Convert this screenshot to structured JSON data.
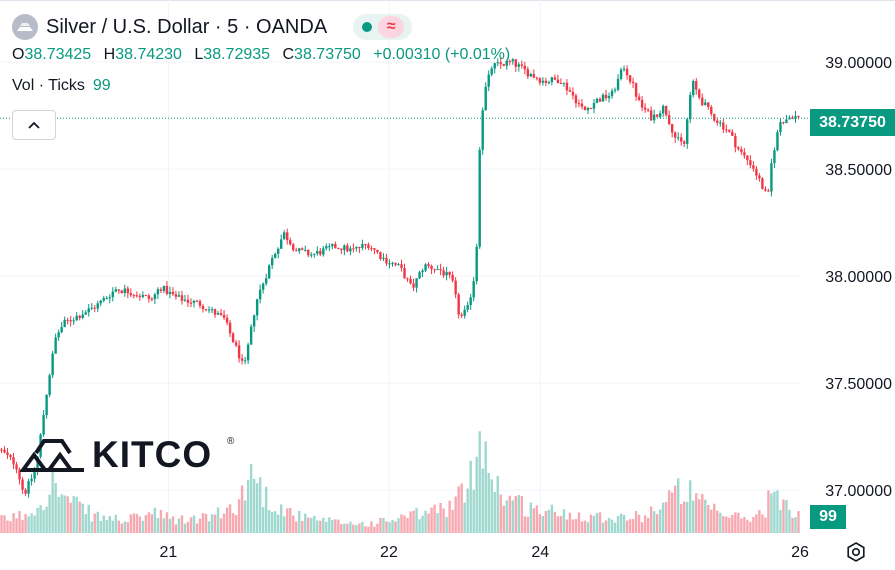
{
  "header": {
    "title": "Silver / U.S. Dollar · 5 · OANDA",
    "ohlc": {
      "o_label": "O",
      "o": "38.73425",
      "h_label": "H",
      "h": "38.74230",
      "l_label": "L",
      "l": "38.72935",
      "c_label": "C",
      "c": "38.73750",
      "change": "+0.00310 (+0.01%)"
    },
    "volume_label": "Vol · Ticks",
    "volume_value": "99"
  },
  "logo": {
    "text": "KITCO",
    "reg": "®"
  },
  "price_tag": "38.73750",
  "volume_tag": "99",
  "icons": {
    "symbol": "silver-bars-icon",
    "status": "market-open-dot-icon",
    "wave": "approx-wave-icon",
    "collapse": "chevron-up-icon",
    "settings": "gear-icon"
  },
  "colors": {
    "up": "#089981",
    "down": "#f23645",
    "grid": "#f0f3fa",
    "text": "#131722"
  },
  "chart_data": {
    "type": "candlestick",
    "symbol": "Silver / U.S. Dollar",
    "interval": "5",
    "source": "OANDA",
    "ylim": [
      36.8,
      39.22
    ],
    "y_ticks": [
      "39.00000",
      "38.50000",
      "38.00000",
      "37.50000",
      "37.00000"
    ],
    "y_tick_values": [
      39.0,
      38.5,
      38.0,
      37.5,
      37.0
    ],
    "x_ticks": [
      {
        "label": "21",
        "at": 0.2105
      },
      {
        "label": "22",
        "at": 0.4862
      },
      {
        "label": "24",
        "at": 0.6754
      },
      {
        "label": "26",
        "at": 1.0
      }
    ],
    "last_price": 38.7375,
    "last_volume": 99,
    "price_path": [
      [
        0.0,
        37.19
      ],
      [
        0.02,
        37.12
      ],
      [
        0.03,
        36.98
      ],
      [
        0.045,
        37.1
      ],
      [
        0.06,
        37.5
      ],
      [
        0.07,
        37.72
      ],
      [
        0.08,
        37.78
      ],
      [
        0.1,
        37.82
      ],
      [
        0.12,
        37.86
      ],
      [
        0.145,
        37.94
      ],
      [
        0.16,
        37.93
      ],
      [
        0.19,
        37.89
      ],
      [
        0.2,
        37.95
      ],
      [
        0.22,
        37.9
      ],
      [
        0.25,
        37.87
      ],
      [
        0.28,
        37.8
      ],
      [
        0.3,
        37.62
      ],
      [
        0.305,
        37.56
      ],
      [
        0.32,
        37.88
      ],
      [
        0.34,
        38.08
      ],
      [
        0.355,
        38.2
      ],
      [
        0.37,
        38.12
      ],
      [
        0.39,
        38.1
      ],
      [
        0.42,
        38.14
      ],
      [
        0.44,
        38.12
      ],
      [
        0.46,
        38.15
      ],
      [
        0.48,
        38.08
      ],
      [
        0.5,
        38.04
      ],
      [
        0.515,
        37.94
      ],
      [
        0.53,
        38.05
      ],
      [
        0.55,
        38.03
      ],
      [
        0.565,
        37.98
      ],
      [
        0.575,
        37.8
      ],
      [
        0.585,
        37.85
      ],
      [
        0.595,
        38.04
      ],
      [
        0.6,
        38.65
      ],
      [
        0.605,
        38.85
      ],
      [
        0.615,
        38.98
      ],
      [
        0.64,
        39.0
      ],
      [
        0.66,
        38.95
      ],
      [
        0.68,
        38.91
      ],
      [
        0.7,
        38.92
      ],
      [
        0.715,
        38.85
      ],
      [
        0.73,
        38.77
      ],
      [
        0.745,
        38.82
      ],
      [
        0.765,
        38.85
      ],
      [
        0.78,
        38.98
      ],
      [
        0.79,
        38.9
      ],
      [
        0.8,
        38.8
      ],
      [
        0.815,
        38.74
      ],
      [
        0.83,
        38.79
      ],
      [
        0.845,
        38.64
      ],
      [
        0.855,
        38.61
      ],
      [
        0.865,
        38.91
      ],
      [
        0.875,
        38.83
      ],
      [
        0.89,
        38.75
      ],
      [
        0.91,
        38.68
      ],
      [
        0.925,
        38.58
      ],
      [
        0.94,
        38.52
      ],
      [
        0.955,
        38.4
      ],
      [
        0.96,
        38.36
      ],
      [
        0.965,
        38.55
      ],
      [
        0.975,
        38.72
      ],
      [
        0.99,
        38.75
      ],
      [
        1.0,
        38.7375
      ]
    ],
    "volume_profile": [
      [
        0.0,
        14
      ],
      [
        0.03,
        20
      ],
      [
        0.05,
        32
      ],
      [
        0.065,
        60
      ],
      [
        0.08,
        38
      ],
      [
        0.12,
        18
      ],
      [
        0.16,
        14
      ],
      [
        0.19,
        22
      ],
      [
        0.22,
        14
      ],
      [
        0.25,
        16
      ],
      [
        0.28,
        22
      ],
      [
        0.3,
        36
      ],
      [
        0.315,
        70
      ],
      [
        0.33,
        42
      ],
      [
        0.35,
        28
      ],
      [
        0.38,
        16
      ],
      [
        0.42,
        12
      ],
      [
        0.46,
        10
      ],
      [
        0.5,
        16
      ],
      [
        0.53,
        22
      ],
      [
        0.565,
        30
      ],
      [
        0.585,
        50
      ],
      [
        0.595,
        82
      ],
      [
        0.6,
        130
      ],
      [
        0.605,
        100
      ],
      [
        0.615,
        62
      ],
      [
        0.63,
        42
      ],
      [
        0.66,
        28
      ],
      [
        0.7,
        22
      ],
      [
        0.73,
        20
      ],
      [
        0.76,
        18
      ],
      [
        0.8,
        18
      ],
      [
        0.83,
        32
      ],
      [
        0.855,
        52
      ],
      [
        0.87,
        36
      ],
      [
        0.9,
        20
      ],
      [
        0.94,
        16
      ],
      [
        0.955,
        24
      ],
      [
        0.965,
        48
      ],
      [
        0.975,
        32
      ],
      [
        1.0,
        18
      ]
    ]
  }
}
